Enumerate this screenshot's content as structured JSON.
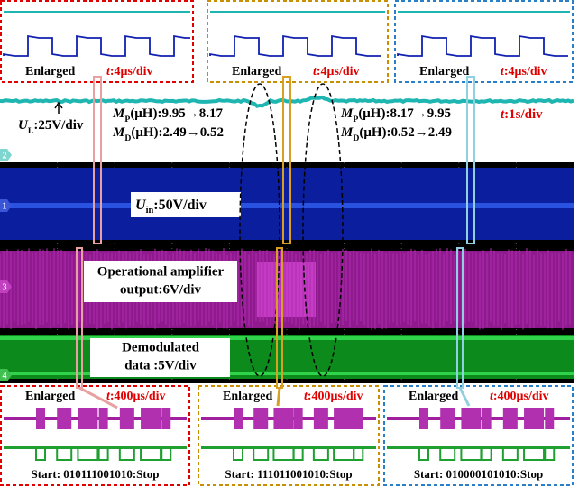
{
  "top_panels": [
    {
      "label": "Enlarged",
      "timebase": {
        "symbol": "t",
        "rest": ":4μs/div"
      }
    },
    {
      "label": "Enlarged",
      "timebase": {
        "symbol": "t",
        "rest": ":4μs/div"
      }
    },
    {
      "label": "Enlarged",
      "timebase": {
        "symbol": "t",
        "rest": ":4μs/div"
      }
    }
  ],
  "main": {
    "ul": {
      "symbol": "U",
      "sub": "L",
      "rest": ":25V/div"
    },
    "left_change": {
      "mp": {
        "symbol": "M",
        "sub": "P",
        "rest": "(μH):9.95→8.17"
      },
      "md": {
        "symbol": "M",
        "sub": "D",
        "rest": "(μH):2.49→0.52"
      }
    },
    "right_change": {
      "mp": {
        "symbol": "M",
        "sub": "P",
        "rest": "(μH):8.17→9.95"
      },
      "md": {
        "symbol": "M",
        "sub": "D",
        "rest": "(μH):0.52→2.49"
      }
    },
    "timebase": {
      "symbol": "t",
      "rest": ":1s/div"
    },
    "uin": {
      "symbol": "U",
      "sub": "in",
      "rest": ":50V/div"
    },
    "opamp": [
      "Operational amplifier",
      "output:6V/div"
    ],
    "demod": [
      "Demodulated",
      "data :5V/div"
    ],
    "channels": [
      "2",
      "1",
      "3",
      "4"
    ]
  },
  "bottom_panels": [
    {
      "label": "Enlarged",
      "timebase": {
        "symbol": "t",
        "rest": ":400μs/div"
      },
      "sequence": "Start: 010111001010:Stop"
    },
    {
      "label": "Enlarged",
      "timebase": {
        "symbol": "t",
        "rest": ":400μs/div"
      },
      "sequence": "Start: 111011001010:Stop"
    },
    {
      "label": "Enlarged",
      "timebase": {
        "symbol": "t",
        "rest": ":400μs/div"
      },
      "sequence": "Start: 010000101010:Stop"
    }
  ]
}
